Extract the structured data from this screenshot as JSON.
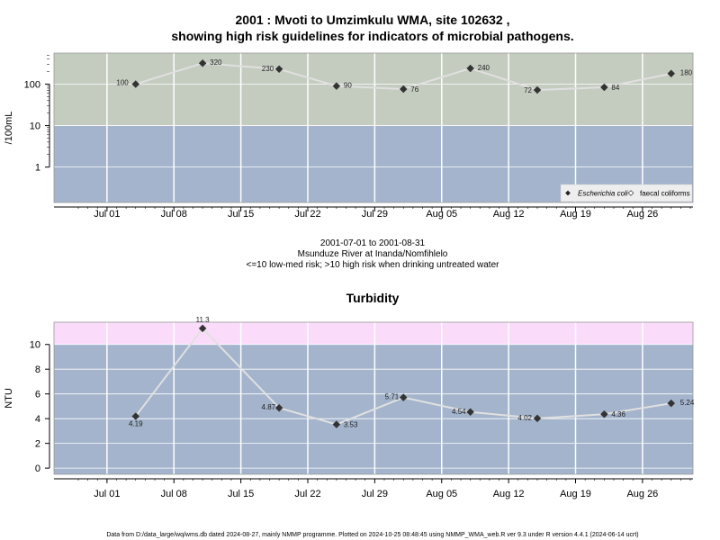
{
  "title_line1": "2001 : Mvoti to Umzimkulu WMA, site 102632 ,",
  "title_line2": "showing high risk guidelines for indicators of microbial pathogens.",
  "subtitle": {
    "line1": "2001-07-01 to 2001-08-31",
    "line2": "Msunduze River at Inanda/Nomfihlelo",
    "line3": "<=10 low-med risk; >10 high risk when drinking untreated water"
  },
  "footer": "Data from D:/data_large/wq/wms.db dated 2024-08-27, mainly NMMP programme. Plotted on 2024-10-25 08:48:45 using NMMP_WMA_web.R ver 9.3 under R version 4.4.1 (2024-06-14 ucrt)",
  "colors": {
    "low_band": "#a3b4cc",
    "high_band_micro": "#c4ccc0",
    "high_band_turb": "#fadcfa",
    "line": "#e0e0e0",
    "point": "#333333"
  },
  "chart_data": [
    {
      "type": "line",
      "title": "",
      "ylabel": "/100mL",
      "yscale": "log",
      "ylim": [
        0.14,
        560
      ],
      "threshold": 10,
      "x_ticks": [
        "Jul 01",
        "Jul 08",
        "Jul 15",
        "Jul 22",
        "Jul 29",
        "Aug 05",
        "Aug 12",
        "Aug 19",
        "Aug 26"
      ],
      "x_tick_dates": [
        "2001-07-01",
        "2001-07-08",
        "2001-07-15",
        "2001-07-22",
        "2001-07-29",
        "2001-08-05",
        "2001-08-12",
        "2001-08-19",
        "2001-08-26"
      ],
      "y_ticks": [
        1,
        10,
        100
      ],
      "y_tick_labels": [
        "1",
        "10",
        "100"
      ],
      "xlim": [
        "2001-06-28",
        "2001-08-31"
      ],
      "legend": {
        "position": "bottom-right",
        "entries": [
          "Escherichia coli",
          "faecal coliforms"
        ]
      },
      "series": [
        {
          "name": "Escherichia coli",
          "points": [
            {
              "x": "2001-07-04",
              "y": 100,
              "label": "100"
            },
            {
              "x": "2001-07-11",
              "y": 320,
              "label": "320"
            },
            {
              "x": "2001-07-19",
              "y": 230,
              "label": "230"
            },
            {
              "x": "2001-07-25",
              "y": 90,
              "label": "90"
            },
            {
              "x": "2001-08-01",
              "y": 76,
              "label": "76"
            },
            {
              "x": "2001-08-08",
              "y": 240,
              "label": "240"
            },
            {
              "x": "2001-08-15",
              "y": 72,
              "label": "72"
            },
            {
              "x": "2001-08-22",
              "y": 84,
              "label": "84"
            },
            {
              "x": "2001-08-29",
              "y": 180,
              "label": "180"
            }
          ]
        }
      ]
    },
    {
      "type": "line",
      "title": "Turbidity",
      "ylabel": "NTU",
      "yscale": "linear",
      "ylim": [
        -0.5,
        11.8
      ],
      "threshold": 10,
      "x_ticks": [
        "Jul 01",
        "Jul 08",
        "Jul 15",
        "Jul 22",
        "Jul 29",
        "Aug 05",
        "Aug 12",
        "Aug 19",
        "Aug 26"
      ],
      "x_tick_dates": [
        "2001-07-01",
        "2001-07-08",
        "2001-07-15",
        "2001-07-22",
        "2001-07-29",
        "2001-08-05",
        "2001-08-12",
        "2001-08-19",
        "2001-08-26"
      ],
      "y_ticks": [
        0,
        2,
        4,
        6,
        8,
        10
      ],
      "y_tick_labels": [
        "0",
        "2",
        "4",
        "6",
        "8",
        "10"
      ],
      "xlim": [
        "2001-06-28",
        "2001-08-31"
      ],
      "series": [
        {
          "name": "",
          "points": [
            {
              "x": "2001-07-04",
              "y": 4.19,
              "label": "4.19"
            },
            {
              "x": "2001-07-11",
              "y": 11.3,
              "label": "11.3"
            },
            {
              "x": "2001-07-19",
              "y": 4.87,
              "label": "4.87"
            },
            {
              "x": "2001-07-25",
              "y": 3.53,
              "label": "3.53"
            },
            {
              "x": "2001-08-01",
              "y": 5.71,
              "label": "5.71"
            },
            {
              "x": "2001-08-08",
              "y": 4.54,
              "label": "4.54"
            },
            {
              "x": "2001-08-15",
              "y": 4.02,
              "label": "4.02"
            },
            {
              "x": "2001-08-22",
              "y": 4.36,
              "label": "4.36"
            },
            {
              "x": "2001-08-29",
              "y": 5.24,
              "label": "5.24"
            }
          ]
        }
      ]
    }
  ]
}
